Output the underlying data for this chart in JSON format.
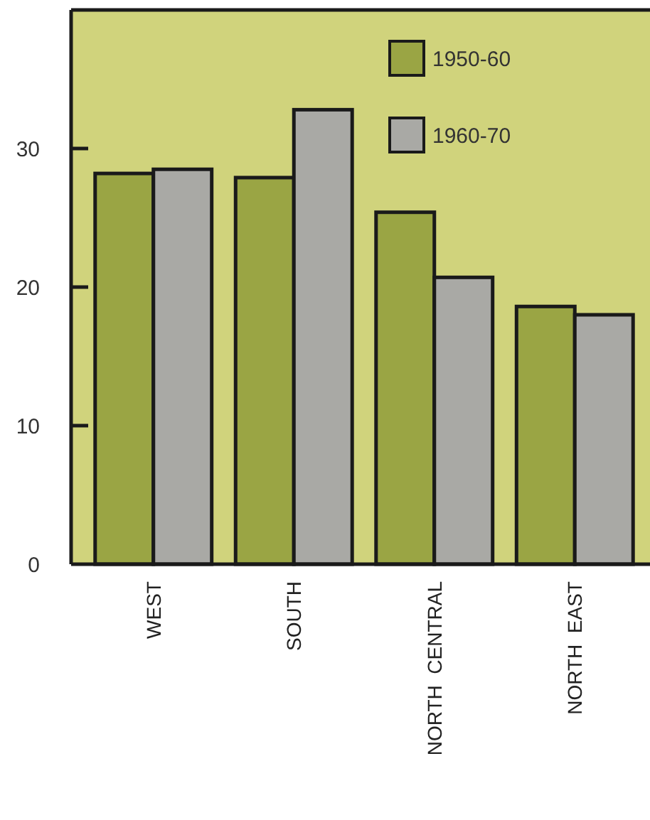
{
  "chart_data": {
    "type": "bar",
    "categories": [
      "WEST",
      "SOUTH",
      "NORTH  CENTRAL",
      "NORTH  EAST"
    ],
    "series": [
      {
        "name": "1950-60",
        "color": "#9aa544",
        "values": [
          28.2,
          27.9,
          25.4,
          18.6
        ]
      },
      {
        "name": "1960-70",
        "color": "#a9a9a5",
        "values": [
          28.5,
          32.8,
          20.7,
          18.0
        ]
      }
    ],
    "ylim": [
      0,
      40
    ],
    "yticks": [
      0,
      10,
      20,
      30
    ],
    "grid": false,
    "legend": "top right"
  }
}
